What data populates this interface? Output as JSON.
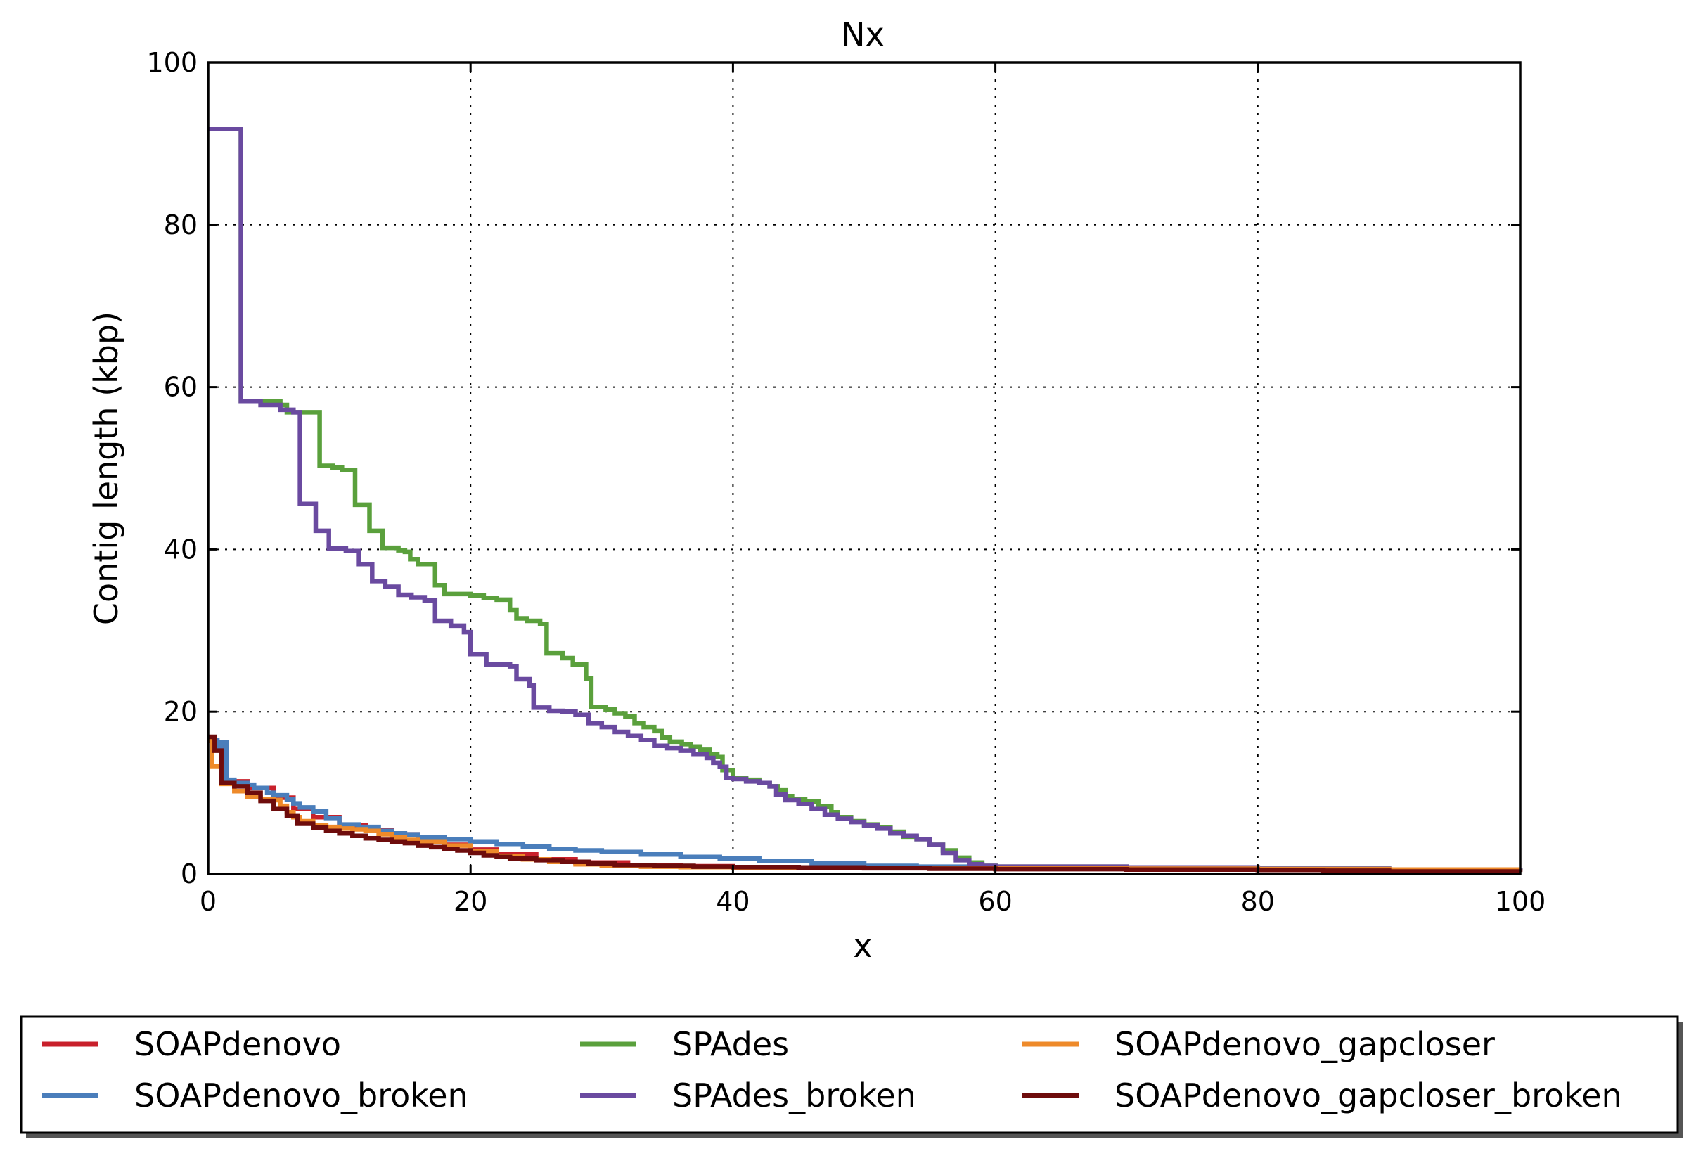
{
  "chart_data": {
    "type": "line",
    "title": "Nx",
    "xlabel": "x",
    "ylabel": "Contig length (kbp)",
    "xlim": [
      0,
      100
    ],
    "ylim": [
      0,
      100
    ],
    "xticks": [
      "0",
      "20",
      "40",
      "60",
      "80",
      "100"
    ],
    "yticks": [
      "0",
      "20",
      "40",
      "60",
      "80",
      "100"
    ],
    "grid": true,
    "legend_position": "bottom",
    "series": [
      {
        "name": "SOAPdenovo",
        "color": "#c8202b",
        "step": true,
        "points": [
          [
            0,
            16.8
          ],
          [
            0.5,
            16.2
          ],
          [
            1,
            11.4
          ],
          [
            3,
            10.6
          ],
          [
            5,
            9.4
          ],
          [
            6.5,
            8.0
          ],
          [
            8,
            7.0
          ],
          [
            10,
            6.0
          ],
          [
            12,
            5.4
          ],
          [
            14,
            4.8
          ],
          [
            16,
            4.2
          ],
          [
            18,
            3.6
          ],
          [
            20,
            3.0
          ],
          [
            22,
            2.4
          ],
          [
            25,
            1.8
          ],
          [
            28,
            1.4
          ],
          [
            32,
            1.1
          ],
          [
            36,
            0.95
          ],
          [
            40,
            0.85
          ],
          [
            45,
            0.8
          ],
          [
            50,
            0.72
          ],
          [
            55,
            0.68
          ],
          [
            60,
            0.65
          ],
          [
            70,
            0.6
          ],
          [
            80,
            0.55
          ],
          [
            90,
            0.5
          ],
          [
            100,
            0.45
          ]
        ]
      },
      {
        "name": "SOAPdenovo_broken",
        "color": "#4a7ebb",
        "step": true,
        "points": [
          [
            0,
            16.5
          ],
          [
            0.7,
            15.5
          ],
          [
            1,
            16.2
          ],
          [
            1.4,
            11.6
          ],
          [
            2,
            11.2
          ],
          [
            3,
            11.0
          ],
          [
            3.5,
            10.6
          ],
          [
            4.5,
            10.0
          ],
          [
            5,
            9.7
          ],
          [
            6,
            9.2
          ],
          [
            6.5,
            8.7
          ],
          [
            7,
            8.2
          ],
          [
            8,
            7.7
          ],
          [
            9,
            6.9
          ],
          [
            10,
            6.1
          ],
          [
            11.5,
            5.8
          ],
          [
            13,
            5.3
          ],
          [
            14,
            5.0
          ],
          [
            15,
            4.8
          ],
          [
            16,
            4.5
          ],
          [
            18,
            4.3
          ],
          [
            20,
            4.0
          ],
          [
            22,
            3.7
          ],
          [
            24,
            3.4
          ],
          [
            26,
            3.1
          ],
          [
            28,
            2.9
          ],
          [
            30,
            2.7
          ],
          [
            33,
            2.4
          ],
          [
            36,
            2.1
          ],
          [
            39,
            1.9
          ],
          [
            42,
            1.6
          ],
          [
            46,
            1.3
          ],
          [
            50,
            1.0
          ],
          [
            54,
            0.9
          ],
          [
            58,
            0.8
          ],
          [
            62,
            0.75
          ],
          [
            70,
            0.65
          ],
          [
            80,
            0.55
          ],
          [
            90,
            0.5
          ],
          [
            100,
            0.45
          ]
        ]
      },
      {
        "name": "SPAdes",
        "color": "#5aa03c",
        "step": true,
        "points": [
          [
            0,
            91.8
          ],
          [
            2.5,
            58.3
          ],
          [
            4.5,
            58.3
          ],
          [
            5.5,
            57.8
          ],
          [
            6,
            56.9
          ],
          [
            8.5,
            50.3
          ],
          [
            9.5,
            50.1
          ],
          [
            10.2,
            49.8
          ],
          [
            11.2,
            45.5
          ],
          [
            12.3,
            42.3
          ],
          [
            13.3,
            40.2
          ],
          [
            14.5,
            39.9
          ],
          [
            15,
            39.7
          ],
          [
            15.4,
            38.8
          ],
          [
            16,
            38.2
          ],
          [
            17.3,
            35.6
          ],
          [
            18,
            34.5
          ],
          [
            20,
            34.3
          ],
          [
            21,
            34.0
          ],
          [
            22,
            33.8
          ],
          [
            23,
            32.5
          ],
          [
            23.5,
            31.5
          ],
          [
            24.3,
            31.2
          ],
          [
            25.3,
            30.8
          ],
          [
            25.8,
            27.2
          ],
          [
            27,
            26.6
          ],
          [
            27.8,
            25.8
          ],
          [
            28.8,
            24.1
          ],
          [
            29.2,
            20.6
          ],
          [
            30.3,
            20.3
          ],
          [
            31,
            19.8
          ],
          [
            31.8,
            19.4
          ],
          [
            32.5,
            18.6
          ],
          [
            33.2,
            18.1
          ],
          [
            34,
            17.6
          ],
          [
            34.6,
            16.8
          ],
          [
            35.2,
            16.3
          ],
          [
            36.1,
            16.0
          ],
          [
            36.8,
            15.7
          ],
          [
            37.5,
            15.3
          ],
          [
            38.2,
            14.8
          ],
          [
            38.8,
            14.4
          ],
          [
            39.2,
            12.8
          ],
          [
            40,
            11.8
          ],
          [
            41,
            11.6
          ],
          [
            42,
            11.2
          ],
          [
            42.8,
            10.8
          ],
          [
            43.4,
            10.3
          ],
          [
            44,
            9.6
          ],
          [
            44.5,
            9.2
          ],
          [
            45.5,
            8.9
          ],
          [
            46.5,
            8.3
          ],
          [
            47.5,
            7.6
          ],
          [
            48,
            7.0
          ],
          [
            49,
            6.5
          ],
          [
            50,
            6.1
          ],
          [
            51,
            5.7
          ],
          [
            52,
            5.2
          ],
          [
            53,
            4.6
          ],
          [
            54,
            4.3
          ],
          [
            55,
            3.6
          ],
          [
            56,
            2.9
          ],
          [
            57,
            2.0
          ],
          [
            58,
            1.4
          ],
          [
            59,
            1.0
          ],
          [
            60,
            0.9
          ],
          [
            70,
            0.8
          ],
          [
            80,
            0.65
          ],
          [
            90,
            0.5
          ],
          [
            100,
            0.4
          ]
        ]
      },
      {
        "name": "SPAdes_broken",
        "color": "#6a4aa0",
        "step": true,
        "points": [
          [
            0,
            91.8
          ],
          [
            2.5,
            58.3
          ],
          [
            4,
            57.8
          ],
          [
            5.5,
            57.2
          ],
          [
            6.5,
            56.9
          ],
          [
            7,
            45.6
          ],
          [
            8.2,
            42.3
          ],
          [
            9.2,
            40.1
          ],
          [
            10.5,
            39.8
          ],
          [
            11.5,
            38.2
          ],
          [
            12.5,
            36.1
          ],
          [
            13.5,
            35.4
          ],
          [
            14.5,
            34.4
          ],
          [
            15.5,
            34.1
          ],
          [
            16.5,
            33.7
          ],
          [
            17.3,
            31.2
          ],
          [
            18.5,
            30.6
          ],
          [
            19.5,
            29.8
          ],
          [
            20,
            27.1
          ],
          [
            21.2,
            25.8
          ],
          [
            23,
            25.6
          ],
          [
            23.5,
            24.0
          ],
          [
            24.5,
            23.2
          ],
          [
            24.8,
            20.5
          ],
          [
            26,
            20.1
          ],
          [
            27,
            20.0
          ],
          [
            28,
            19.6
          ],
          [
            29,
            18.6
          ],
          [
            30,
            18.1
          ],
          [
            31,
            17.5
          ],
          [
            32,
            17.0
          ],
          [
            33,
            16.5
          ],
          [
            34,
            15.8
          ],
          [
            35,
            15.5
          ],
          [
            36,
            15.2
          ],
          [
            37,
            14.8
          ],
          [
            38,
            14.3
          ],
          [
            38.5,
            13.7
          ],
          [
            39,
            13.2
          ],
          [
            39.5,
            11.8
          ],
          [
            40,
            11.7
          ],
          [
            41,
            11.4
          ],
          [
            42,
            11.2
          ],
          [
            42.8,
            10.8
          ],
          [
            43.3,
            9.8
          ],
          [
            44,
            9.1
          ],
          [
            45,
            8.6
          ],
          [
            46,
            8.0
          ],
          [
            47,
            7.3
          ],
          [
            48,
            6.8
          ],
          [
            49,
            6.4
          ],
          [
            50,
            6.0
          ],
          [
            51,
            5.6
          ],
          [
            52,
            5.0
          ],
          [
            53,
            4.7
          ],
          [
            54,
            4.3
          ],
          [
            55,
            3.6
          ],
          [
            56,
            2.6
          ],
          [
            57,
            1.7
          ],
          [
            58,
            1.2
          ],
          [
            59,
            1.0
          ],
          [
            60,
            0.9
          ],
          [
            70,
            0.8
          ],
          [
            80,
            0.65
          ],
          [
            90,
            0.5
          ],
          [
            100,
            0.4
          ]
        ]
      },
      {
        "name": "SOAPdenovo_gapcloser",
        "color": "#ee8a2a",
        "step": true,
        "points": [
          [
            0,
            16.4
          ],
          [
            0.3,
            13.3
          ],
          [
            1,
            11.1
          ],
          [
            2,
            10.2
          ],
          [
            3,
            9.5
          ],
          [
            4,
            9.2
          ],
          [
            5,
            9.1
          ],
          [
            5.5,
            8.4
          ],
          [
            6,
            7.6
          ],
          [
            6.5,
            7.0
          ],
          [
            7,
            6.5
          ],
          [
            8,
            6.0
          ],
          [
            9,
            5.8
          ],
          [
            10,
            5.6
          ],
          [
            11,
            5.5
          ],
          [
            12,
            5.3
          ],
          [
            13,
            4.9
          ],
          [
            14,
            4.5
          ],
          [
            15,
            4.2
          ],
          [
            16,
            4.0
          ],
          [
            18,
            3.5
          ],
          [
            20,
            2.8
          ],
          [
            22,
            2.2
          ],
          [
            24,
            1.8
          ],
          [
            26,
            1.5
          ],
          [
            28,
            1.2
          ],
          [
            30,
            1.0
          ],
          [
            33,
            0.9
          ],
          [
            36,
            0.85
          ],
          [
            40,
            0.8
          ],
          [
            45,
            0.8
          ],
          [
            50,
            0.75
          ],
          [
            55,
            0.7
          ],
          [
            60,
            0.7
          ],
          [
            70,
            0.65
          ],
          [
            80,
            0.6
          ],
          [
            90,
            0.55
          ],
          [
            100,
            0.55
          ]
        ]
      },
      {
        "name": "SOAPdenovo_gapcloser_broken",
        "color": "#6e0c0c",
        "step": true,
        "points": [
          [
            0,
            16.9
          ],
          [
            0.5,
            15.2
          ],
          [
            1,
            11.2
          ],
          [
            2,
            10.8
          ],
          [
            3,
            10.0
          ],
          [
            4,
            9.0
          ],
          [
            5,
            8.0
          ],
          [
            6,
            7.2
          ],
          [
            6.8,
            6.2
          ],
          [
            8,
            5.7
          ],
          [
            9,
            5.3
          ],
          [
            10,
            5.0
          ],
          [
            11,
            4.7
          ],
          [
            12,
            4.4
          ],
          [
            13,
            4.2
          ],
          [
            14,
            4.0
          ],
          [
            15,
            3.8
          ],
          [
            16,
            3.5
          ],
          [
            17,
            3.3
          ],
          [
            18,
            3.1
          ],
          [
            19,
            2.9
          ],
          [
            20,
            2.6
          ],
          [
            21,
            2.3
          ],
          [
            22,
            2.1
          ],
          [
            23,
            1.9
          ],
          [
            25,
            1.7
          ],
          [
            27,
            1.5
          ],
          [
            29,
            1.3
          ],
          [
            31,
            1.1
          ],
          [
            34,
            1.0
          ],
          [
            37,
            0.9
          ],
          [
            40,
            0.85
          ],
          [
            45,
            0.8
          ],
          [
            50,
            0.7
          ],
          [
            55,
            0.65
          ],
          [
            60,
            0.6
          ],
          [
            70,
            0.55
          ],
          [
            80,
            0.5
          ],
          [
            85,
            0.4
          ],
          [
            90,
            0.3
          ],
          [
            100,
            0.25
          ]
        ]
      }
    ]
  }
}
